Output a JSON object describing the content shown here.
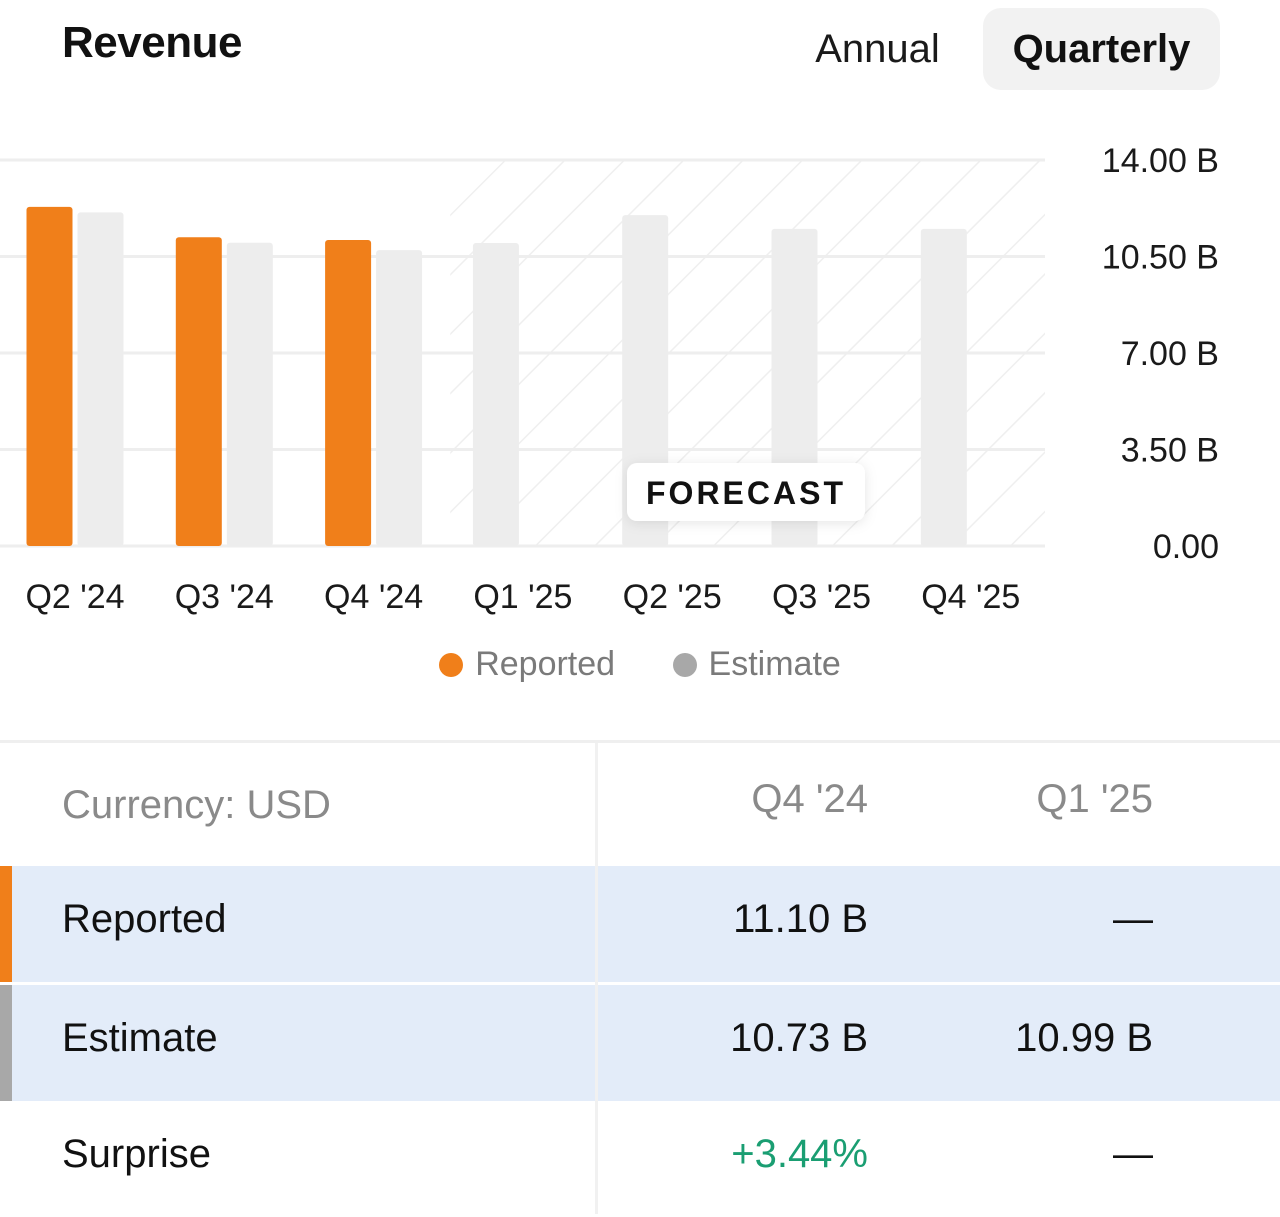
{
  "header": {
    "title": "Revenue",
    "tabs": [
      {
        "label": "Annual",
        "selected": false
      },
      {
        "label": "Quarterly",
        "selected": true
      }
    ]
  },
  "colors": {
    "reported": "#f07f1a",
    "estimate": "#ededed",
    "estimate_legend": "#a8a8a8",
    "grid": "#eeeeee",
    "row_highlight": "#e3ecf9",
    "positive": "#1a9e72"
  },
  "chart_data": {
    "type": "bar",
    "categories": [
      "Q2 '24",
      "Q3 '24",
      "Q4 '24",
      "Q1 '25",
      "Q2 '25",
      "Q3 '25",
      "Q4 '25"
    ],
    "series": [
      {
        "name": "Reported",
        "values": [
          12.3,
          11.2,
          11.1,
          null,
          null,
          null,
          null
        ]
      },
      {
        "name": "Estimate",
        "values": [
          12.1,
          11.0,
          10.73,
          10.99,
          12.0,
          11.5,
          11.5
        ]
      }
    ],
    "yticks": [
      "14.00 B",
      "10.50 B",
      "7.00 B",
      "3.50 B",
      "0.00"
    ],
    "ylim": [
      0,
      14
    ],
    "forecast_label": "FORECAST",
    "forecast_start_index": 3,
    "legend_position": "bottom-center",
    "grid": true
  },
  "legend": [
    {
      "label": "Reported",
      "color": "#f07f1a"
    },
    {
      "label": "Estimate",
      "color": "#a8a8a8"
    }
  ],
  "table": {
    "currency_label": "Currency: USD",
    "columns": [
      "Q4 '24",
      "Q1 '25"
    ],
    "rows": [
      {
        "label": "Reported",
        "values": [
          "11.10 B",
          "—"
        ]
      },
      {
        "label": "Estimate",
        "values": [
          "10.73 B",
          "10.99 B"
        ]
      },
      {
        "label": "Surprise",
        "values": [
          "+3.44%",
          "—"
        ]
      }
    ]
  }
}
